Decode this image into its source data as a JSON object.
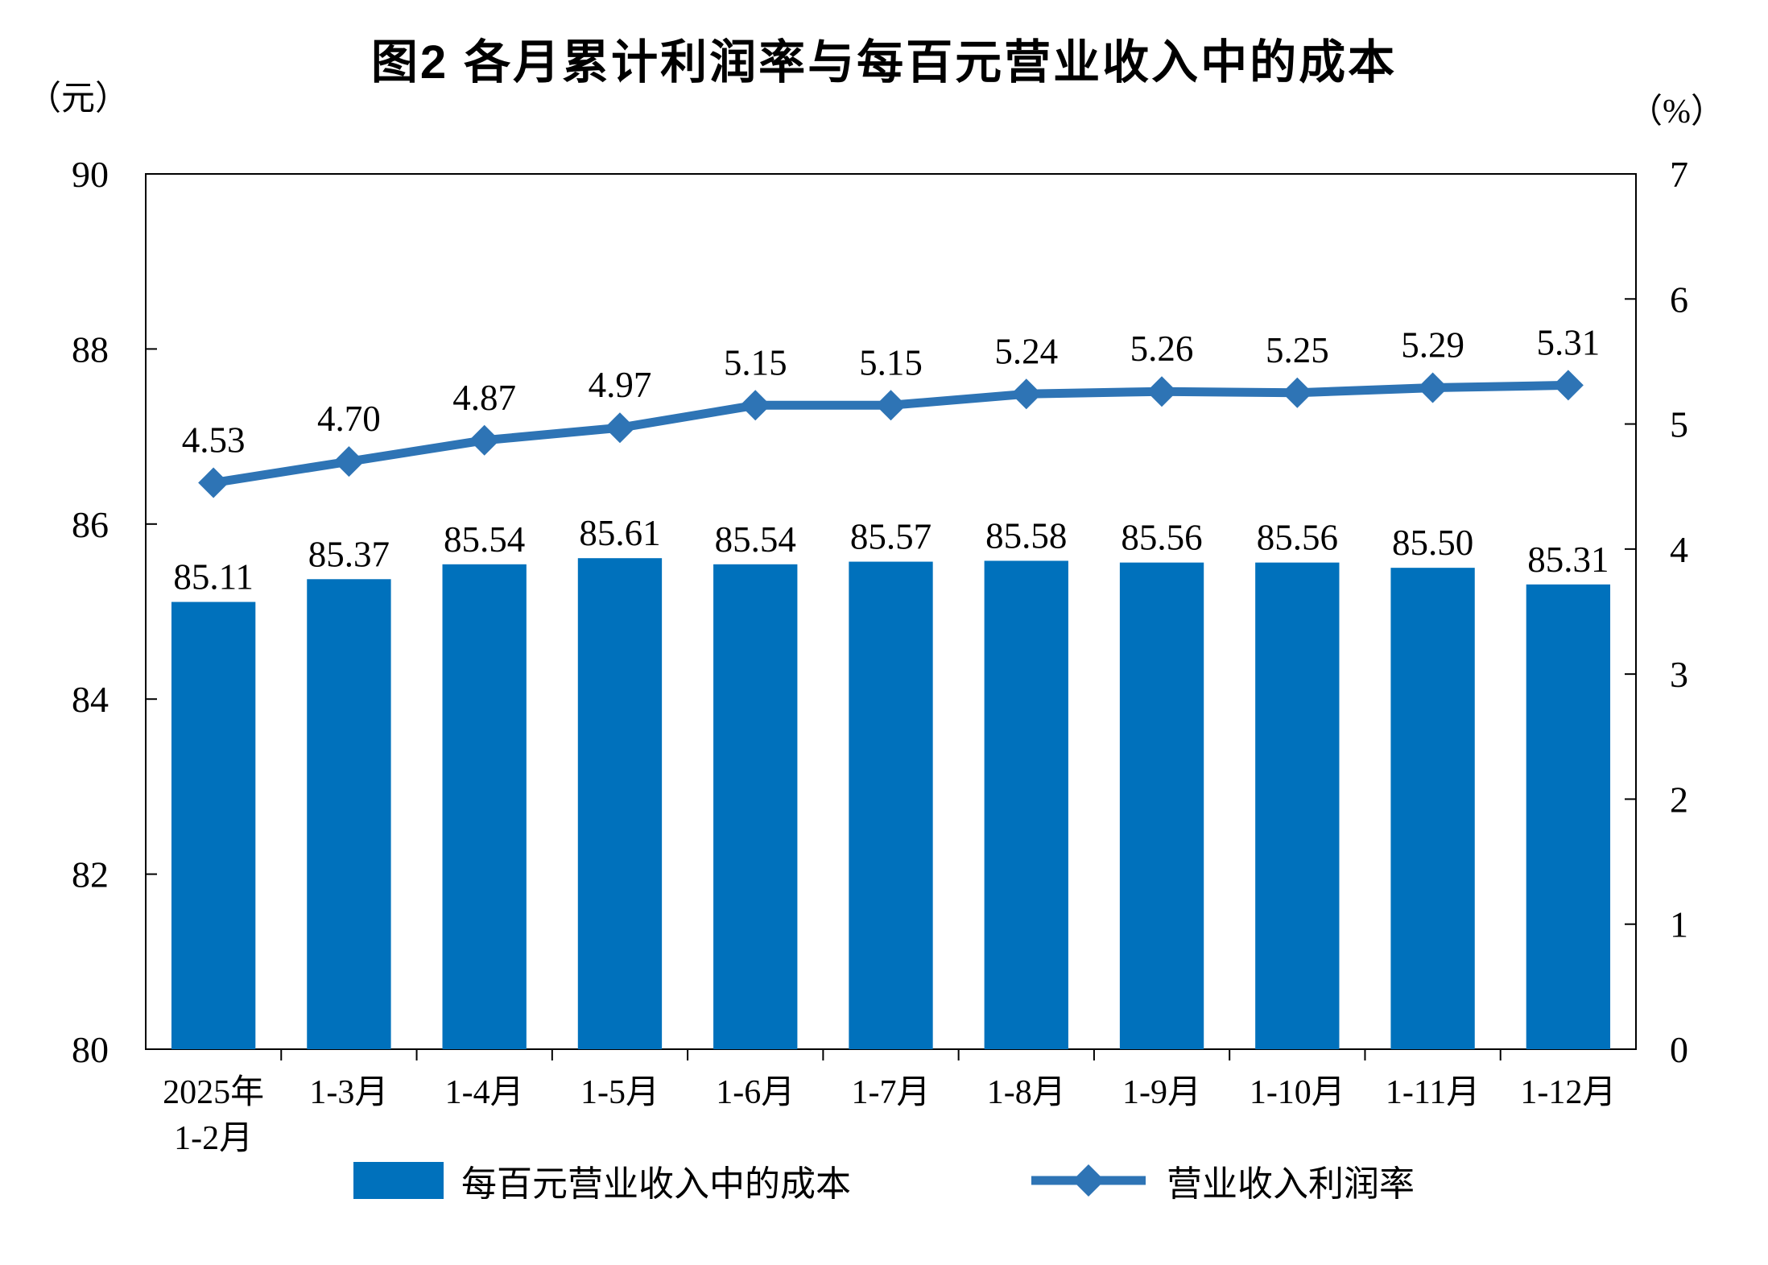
{
  "title": "图2 各月累计利润率与每百元营业收入中的成本",
  "left_axis_unit": "（元）",
  "right_axis_unit": "（%）",
  "colors": {
    "bar": "#0071BC",
    "line": "#2E74B5",
    "axis": "#000000",
    "text": "#000000",
    "background": "#FFFFFF"
  },
  "chart_data": {
    "type": "bar",
    "combo": "bar+line",
    "grid": "off",
    "legend_position": "bottom",
    "categories": [
      [
        "2025年",
        "1-2月"
      ],
      [
        "1-3月"
      ],
      [
        "1-4月"
      ],
      [
        "1-5月"
      ],
      [
        "1-6月"
      ],
      [
        "1-7月"
      ],
      [
        "1-8月"
      ],
      [
        "1-9月"
      ],
      [
        "1-10月"
      ],
      [
        "1-11月"
      ],
      [
        "1-12月"
      ]
    ],
    "series": [
      {
        "name": "每百元营业收入中的成本",
        "type": "bar",
        "axis": "left",
        "color": "#0071BC",
        "values": [
          85.11,
          85.37,
          85.54,
          85.61,
          85.54,
          85.57,
          85.58,
          85.56,
          85.56,
          85.5,
          85.31
        ]
      },
      {
        "name": "营业收入利润率",
        "type": "line",
        "axis": "right",
        "color": "#2E74B5",
        "values": [
          4.53,
          4.7,
          4.87,
          4.97,
          5.15,
          5.15,
          5.24,
          5.26,
          5.25,
          5.29,
          5.31
        ]
      }
    ],
    "left_axis": {
      "min": 80,
      "max": 90,
      "step": 2,
      "ticks": [
        90,
        88,
        86,
        84,
        82,
        80
      ],
      "unit": "（元）"
    },
    "right_axis": {
      "min": 0,
      "max": 7,
      "step": 1,
      "ticks": [
        7,
        6,
        5,
        4,
        3,
        2,
        1,
        0
      ],
      "unit": "（%）"
    },
    "value_label_format": "2dp"
  }
}
